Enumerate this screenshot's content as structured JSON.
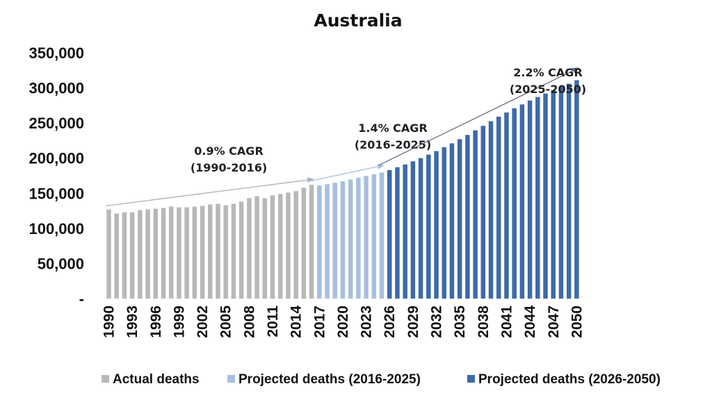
{
  "chart_data": {
    "type": "bar",
    "title": "Australia",
    "xlabel": "",
    "ylabel": "",
    "ylim": [
      0,
      350000
    ],
    "yticks": [
      {
        "value": 0,
        "label": "-"
      },
      {
        "value": 50000,
        "label": "50,000"
      },
      {
        "value": 100000,
        "label": "100,000"
      },
      {
        "value": 150000,
        "label": "150,000"
      },
      {
        "value": 200000,
        "label": "200,000"
      },
      {
        "value": 250000,
        "label": "250,000"
      },
      {
        "value": 300000,
        "label": "300,000"
      },
      {
        "value": 350000,
        "label": "350,000"
      }
    ],
    "xtick_labels": [
      "1990",
      "1993",
      "1996",
      "1999",
      "2002",
      "2005",
      "2008",
      "2011",
      "2014",
      "2017",
      "2020",
      "2023",
      "2026",
      "2029",
      "2032",
      "2035",
      "2038",
      "2041",
      "2044",
      "2047",
      "2050"
    ],
    "grid": false,
    "legend_position": "bottom",
    "series": [
      {
        "name": "Actual deaths",
        "color": "#b8b8b8",
        "x": [
          1990,
          1991,
          1992,
          1993,
          1994,
          1995,
          1996,
          1997,
          1998,
          1999,
          2000,
          2001,
          2002,
          2003,
          2004,
          2005,
          2006,
          2007,
          2008,
          2009,
          2010,
          2011,
          2012,
          2013,
          2014,
          2015,
          2016
        ],
        "values": [
          127000,
          121000,
          123000,
          123000,
          126000,
          127000,
          128000,
          129000,
          131000,
          130000,
          130000,
          131000,
          132000,
          134000,
          135000,
          133000,
          135000,
          138000,
          143000,
          146000,
          143000,
          147000,
          149000,
          151000,
          153000,
          158000,
          162000
        ]
      },
      {
        "name": "Projected deaths (2016-2025)",
        "color": "#a7bfe0",
        "x": [
          2017,
          2018,
          2019,
          2020,
          2021,
          2022,
          2023,
          2024,
          2025
        ],
        "values": [
          161000,
          163000,
          165000,
          167000,
          169500,
          172000,
          174500,
          177000,
          179500
        ]
      },
      {
        "name": "Projected deaths (2026-2050)",
        "color": "#3d6aa8",
        "x": [
          2026,
          2027,
          2028,
          2029,
          2030,
          2031,
          2032,
          2033,
          2034,
          2035,
          2036,
          2037,
          2038,
          2039,
          2040,
          2041,
          2042,
          2043,
          2044,
          2045,
          2046,
          2047,
          2048,
          2049,
          2050
        ],
        "values": [
          183000,
          187000,
          191000,
          195500,
          200000,
          205000,
          210000,
          215500,
          221000,
          227000,
          233000,
          239500,
          246000,
          252500,
          259000,
          265000,
          271000,
          276500,
          282000,
          287000,
          292000,
          297000,
          301500,
          306000,
          311000
        ]
      }
    ],
    "annotations": [
      {
        "line1": "0.9% CAGR",
        "line2": "(1990-2016)",
        "from": [
          1990,
          132000
        ],
        "to": [
          2016,
          170000
        ],
        "color": "#b0b0b0"
      },
      {
        "line1": "1.4% CAGR",
        "line2": "(2016-2025)",
        "from": [
          2016,
          167000
        ],
        "to": [
          2025,
          190000
        ],
        "color": "#a7bfe0"
      },
      {
        "line1": "2.2% CAGR",
        "line2": "(2025-2050)",
        "from": [
          2025,
          190000
        ],
        "to": [
          2050,
          329000
        ],
        "color": "#5b6e85"
      }
    ]
  }
}
